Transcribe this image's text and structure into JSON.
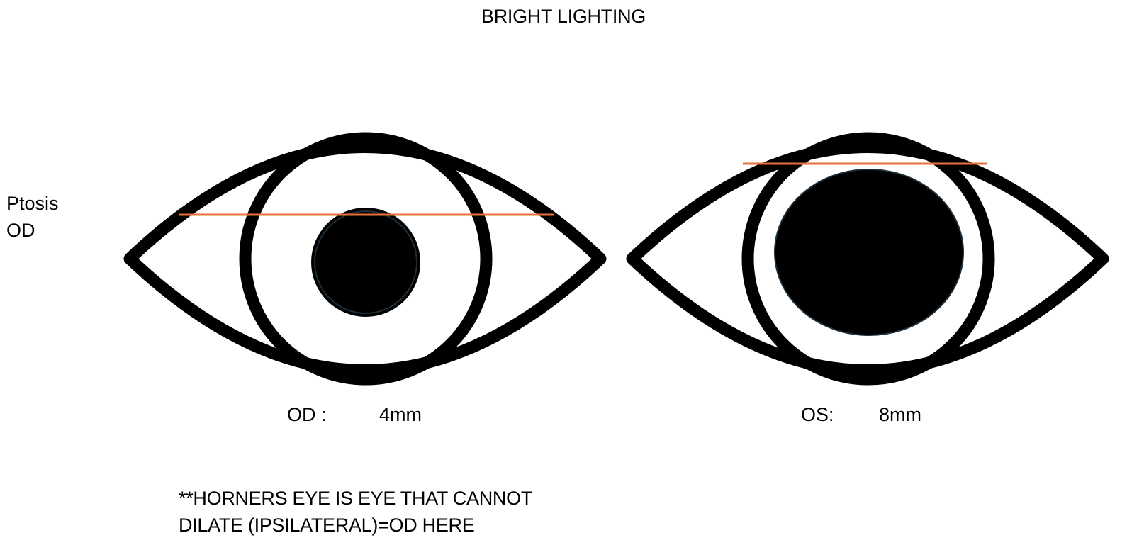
{
  "title": "BRIGHT LIGHTING",
  "side_label": {
    "line1": "Ptosis",
    "line2": "OD"
  },
  "eyes": [
    {
      "side_label": "OD :",
      "pupil_size": "4mm"
    },
    {
      "side_label": "OS:",
      "pupil_size": "8mm"
    }
  ],
  "note": {
    "line1": "**HORNERS EYE IS EYE THAT CANNOT",
    "line2": "DILATE (IPSILATERAL)=OD HERE"
  },
  "colors": {
    "outline": "#000000",
    "pupil": "#000000",
    "ptosis_line": "#e8703a",
    "background": "#ffffff"
  }
}
